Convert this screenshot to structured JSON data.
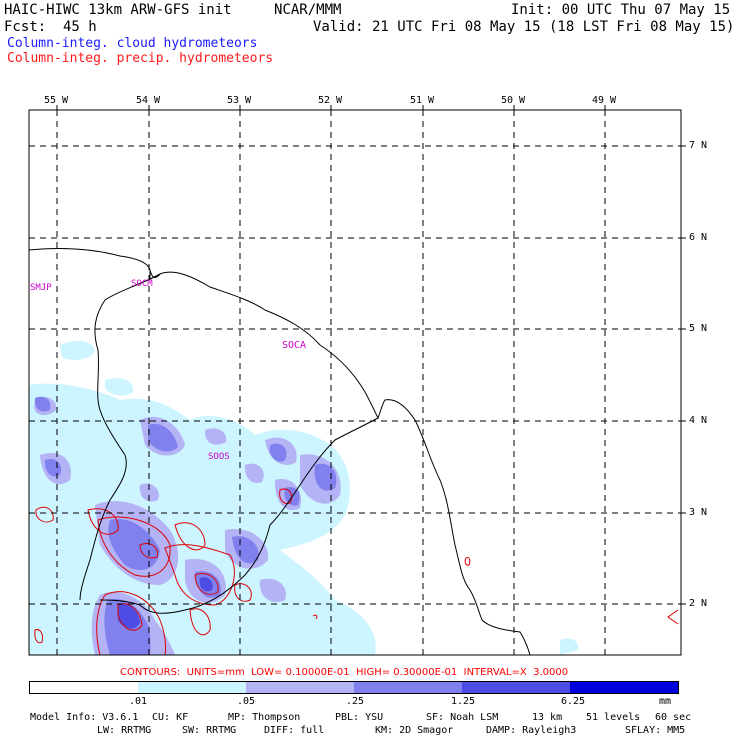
{
  "header": {
    "model_title": "HAIC-HIWC 13km ARW-GFS init",
    "org": "NCAR/MMM",
    "init": "Init: 00 UTC Thu 07 May 15",
    "fcst_label": "Fcst:",
    "fcst_value": "45 h",
    "valid": "Valid: 21 UTC Fri 08 May 15 (18 LST Fri 08 May 15)",
    "legend_blue": "Column-integ. cloud hydrometeors",
    "legend_red": "Column-integ. precip. hydrometeors"
  },
  "map": {
    "lon_labels": [
      "55 W",
      "54 W",
      "53 W",
      "52 W",
      "51 W",
      "50 W",
      "49 W"
    ],
    "lat_labels": [
      "7 N",
      "6 N",
      "5 N",
      "4 N",
      "3 N",
      "2 N"
    ],
    "stations": [
      "SMJP",
      "SOCM",
      "SOCA",
      "SOOS"
    ]
  },
  "contours_note": "CONTOURS:  UNITS=mm  LOW= 0.10000E-01  HIGH= 0.30000E-01  INTERVAL=X  3.0000",
  "colorbar": {
    "colors": [
      "#ffffff",
      "#ccf5ff",
      "#b3b3f5",
      "#8080ee",
      "#4d4de6",
      "#0000dd"
    ],
    "tick_labels": [
      ".01",
      ".05",
      ".25",
      "1.25",
      "6.25"
    ],
    "units": "mm"
  },
  "footer": {
    "line1": [
      "Model Info: V3.6.1",
      "CU: KF",
      "MP: Thompson",
      "PBL: YSU",
      "SF: Noah LSM",
      "13 km",
      "51 levels",
      "60 sec"
    ],
    "line2": [
      "LW: RRTMG",
      "SW: RRTMG",
      "DIFF: full",
      "KM: 2D Smagor",
      "DAMP: Rayleigh3",
      "SFLAY: MM5"
    ]
  }
}
